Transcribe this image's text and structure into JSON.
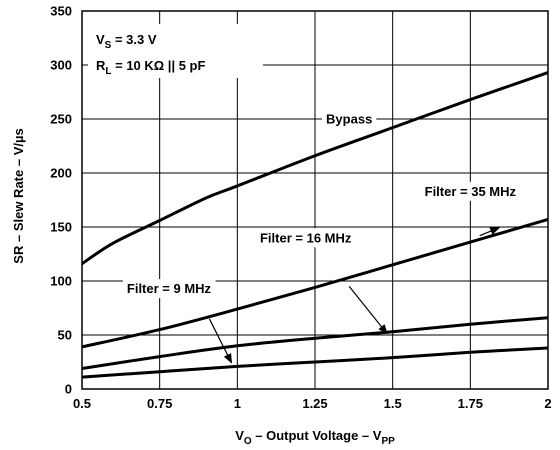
{
  "chart_data": {
    "type": "line",
    "xlabel": {
      "main": "V",
      "sub": "O",
      "mid": " – Output Voltage – V",
      "sub2": "PP"
    },
    "ylabel": "SR – Slew Rate – V/µs",
    "xlim": [
      0.5,
      2
    ],
    "ylim": [
      0,
      350
    ],
    "x_ticks": [
      "0.5",
      "0.75",
      "1",
      "1.25",
      "1.5",
      "1.75",
      "2"
    ],
    "y_ticks": [
      "0",
      "50",
      "100",
      "150",
      "200",
      "250",
      "300",
      "350"
    ],
    "grid": true,
    "conditions": {
      "vs": {
        "main": "V",
        "sub": "S",
        "rest": " = 3.3 V"
      },
      "rl": {
        "main": "R",
        "sub": "L",
        "rest": " = 10 KΩ || 5 pF"
      }
    },
    "series": [
      {
        "name": "Bypass",
        "x": [
          0.5,
          0.6,
          0.75,
          0.9,
          1.0,
          1.25,
          1.5,
          1.75,
          2.0
        ],
        "y": [
          116,
          135,
          156,
          177,
          188,
          216,
          242,
          268,
          293
        ]
      },
      {
        "name": "Filter = 35 MHz",
        "x": [
          0.5,
          0.75,
          1.0,
          1.25,
          1.5,
          1.75,
          2.0
        ],
        "y": [
          39,
          55,
          74,
          94,
          115,
          136,
          157
        ]
      },
      {
        "name": "Filter = 16 MHz",
        "x": [
          0.5,
          0.75,
          1.0,
          1.25,
          1.5,
          1.75,
          2.0
        ],
        "y": [
          19,
          30,
          40,
          47,
          53,
          60,
          66
        ]
      },
      {
        "name": "Filter = 9 MHz",
        "x": [
          0.5,
          0.75,
          1.0,
          1.25,
          1.5,
          1.75,
          2.0
        ],
        "y": [
          11,
          16,
          21,
          25,
          29,
          34,
          38
        ]
      }
    ],
    "annotations": [
      {
        "series": "Bypass",
        "text": "Bypass",
        "at": [
          1.36,
          250
        ],
        "arrow": false
      },
      {
        "series": "Filter = 35 MHz",
        "text": "Filter = 35 MHz",
        "at": [
          1.75,
          183
        ],
        "arrow_from": [
          1.78,
          142
        ],
        "arrow_to": [
          1.84,
          149
        ]
      },
      {
        "series": "Filter = 16 MHz",
        "text": "Filter = 16 MHz",
        "at": [
          1.22,
          140
        ],
        "arrow_from": [
          1.36,
          95
        ],
        "arrow_to": [
          1.48,
          52
        ]
      },
      {
        "series": "Filter = 9 MHz",
        "text": "Filter = 9 MHz",
        "at": [
          0.78,
          93
        ],
        "arrow_from": [
          0.91,
          65
        ],
        "arrow_to": [
          0.98,
          25
        ]
      }
    ]
  }
}
